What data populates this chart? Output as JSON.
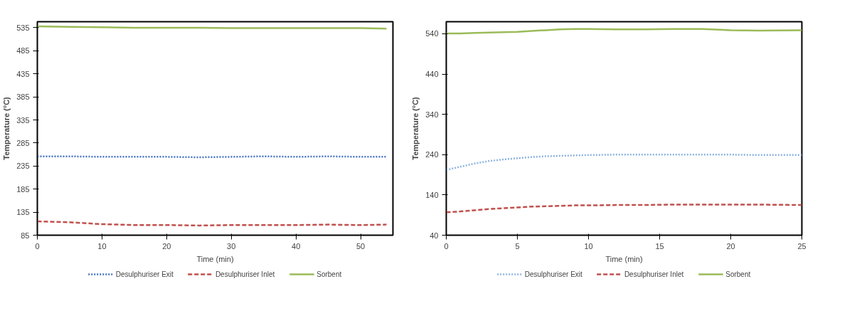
{
  "chart_data": [
    {
      "type": "line",
      "xlabel": "Time (min)",
      "ylabel": "Temperature (°C)",
      "xlim": [
        0,
        55
      ],
      "xticks": [
        0,
        10,
        20,
        30,
        40,
        50
      ],
      "ylim": [
        85,
        548
      ],
      "yticks": [
        85,
        135,
        185,
        235,
        285,
        335,
        385,
        435,
        485,
        535
      ],
      "grid": false,
      "legend": "bottom",
      "marker": "none",
      "x": [
        0,
        5,
        10,
        15,
        20,
        25,
        30,
        35,
        40,
        45,
        50,
        54
      ],
      "series": [
        {
          "name": "Desulphuriser Exit",
          "color": "#4472c4",
          "line_style": "dotted",
          "values": [
            256,
            256,
            255,
            255,
            255,
            254,
            255,
            256,
            255,
            256,
            255,
            255
          ]
        },
        {
          "name": "Desulphuriser Inlet",
          "color": "#c0504d",
          "line_style": "dashed",
          "values": [
            115,
            113,
            109,
            107,
            107,
            106,
            107,
            107,
            107,
            108,
            107,
            108
          ]
        },
        {
          "name": "Sorbent",
          "color": "#9bbb59",
          "line_style": "solid",
          "values": [
            538,
            537,
            536,
            535,
            535,
            535,
            534,
            534,
            534,
            534,
            534,
            533
          ]
        }
      ]
    },
    {
      "type": "line",
      "xlabel": "Time (min)",
      "ylabel": "Temperature (°C)",
      "xlim": [
        0,
        25
      ],
      "xticks": [
        0,
        5,
        10,
        15,
        20,
        25
      ],
      "ylim": [
        40,
        570
      ],
      "yticks": [
        40,
        140,
        240,
        340,
        440,
        540
      ],
      "grid": false,
      "legend": "bottom",
      "marker": "none",
      "x": [
        0,
        1,
        2,
        3,
        4,
        5,
        6,
        7,
        8,
        9,
        10,
        12,
        14,
        16,
        18,
        20,
        22,
        25
      ],
      "series": [
        {
          "name": "Desulphuriser Exit",
          "color": "#8db4e2",
          "line_style": "dotted",
          "values": [
            202,
            210,
            218,
            224,
            228,
            231,
            234,
            236,
            237,
            238,
            239,
            240,
            240,
            240,
            240,
            240,
            239,
            239
          ]
        },
        {
          "name": "Desulphuriser Inlet",
          "color": "#c0504d",
          "line_style": "dashed",
          "values": [
            97,
            99,
            102,
            105,
            107,
            109,
            111,
            112,
            113,
            114,
            114,
            115,
            115,
            116,
            116,
            116,
            116,
            115
          ]
        },
        {
          "name": "Sorbent",
          "color": "#9bbb59",
          "line_style": "solid",
          "values": [
            541,
            541,
            542,
            543,
            544,
            545,
            547,
            549,
            551,
            552,
            552,
            551,
            551,
            552,
            552,
            549,
            548,
            549
          ]
        }
      ]
    }
  ]
}
